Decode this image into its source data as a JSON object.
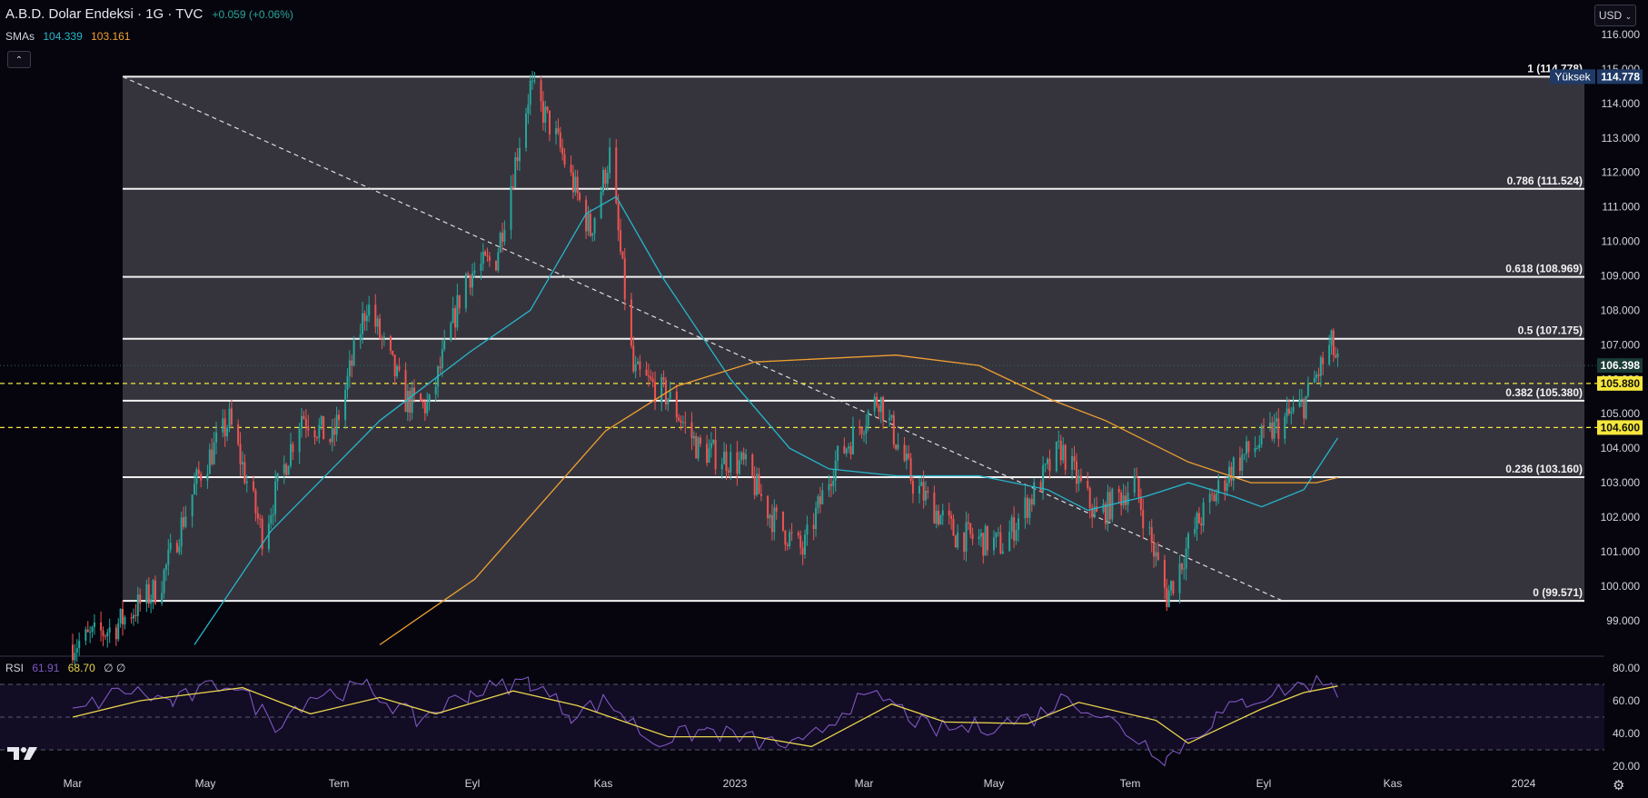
{
  "header": {
    "title": "A.B.D. Dolar Endeksi · 1G · TVC",
    "change": "+0.059 (+0.06%)",
    "sma_label": "SMAs",
    "sma_fast_value": "104.339",
    "sma_slow_value": "103.161",
    "collapse_icon": "chevron-up-icon"
  },
  "currency_button": {
    "label": "USD",
    "icon": "chevron-down-icon"
  },
  "rsi": {
    "label": "RSI",
    "value": "61.91",
    "ma_value": "68.70",
    "extra": "∅ ∅"
  },
  "colors": {
    "background": "#06050e",
    "fib_band": "#35343d",
    "up": "#26a69a",
    "down": "#ef5350",
    "sma_fast": "#26b6c9",
    "sma_slow": "#f0a030",
    "rsi_line": "#7e57c2",
    "rsi_ma": "#e8d44d",
    "dashed_level": "#f5e63c"
  },
  "chart_data": [
    {
      "type": "candlestick",
      "title": "A.B.D. Dolar Endeksi · 1G · TVC",
      "timeframe": "1G",
      "x_tick_labels": [
        "Mar",
        "May",
        "Tem",
        "Eyl",
        "Kas",
        "2023",
        "Mar",
        "May",
        "Tem",
        "Eyl",
        "Kas",
        "2024"
      ],
      "y_tick_labels": [
        "116.000",
        "115.000",
        "114.000",
        "113.000",
        "112.000",
        "111.000",
        "110.000",
        "109.000",
        "108.000",
        "107.000",
        "106.000",
        "105.000",
        "104.000",
        "103.000",
        "102.000",
        "101.000",
        "100.000",
        "99.000"
      ],
      "ylim": [
        98.2,
        116.6
      ],
      "price_path": [
        [
          "2022-03-01",
          98.3
        ],
        [
          "2022-03-20",
          98.8
        ],
        [
          "2022-04-10",
          100.0
        ],
        [
          "2022-04-28",
          103.2
        ],
        [
          "2022-05-12",
          104.8
        ],
        [
          "2022-05-27",
          101.5
        ],
        [
          "2022-06-14",
          105.0
        ],
        [
          "2022-06-28",
          104.2
        ],
        [
          "2022-07-14",
          108.2
        ],
        [
          "2022-08-01",
          105.4
        ],
        [
          "2022-08-12",
          105.2
        ],
        [
          "2022-08-29",
          109.0
        ],
        [
          "2022-09-12",
          109.5
        ],
        [
          "2022-09-28",
          114.5
        ],
        [
          "2022-10-10",
          113.0
        ],
        [
          "2022-10-26",
          110.3
        ],
        [
          "2022-11-04",
          112.5
        ],
        [
          "2022-11-15",
          106.2
        ],
        [
          "2022-12-01",
          105.5
        ],
        [
          "2022-12-15",
          104.0
        ],
        [
          "2023-01-05",
          103.5
        ],
        [
          "2023-01-18",
          102.0
        ],
        [
          "2023-02-01",
          101.0
        ],
        [
          "2023-02-15",
          103.5
        ],
        [
          "2023-03-08",
          105.5
        ],
        [
          "2023-03-24",
          103.0
        ],
        [
          "2023-04-13",
          101.5
        ],
        [
          "2023-05-05",
          101.2
        ],
        [
          "2023-05-31",
          104.0
        ],
        [
          "2023-06-16",
          102.0
        ],
        [
          "2023-07-03",
          103.0
        ],
        [
          "2023-07-18",
          99.7
        ],
        [
          "2023-08-01",
          101.8
        ],
        [
          "2023-08-18",
          103.5
        ],
        [
          "2023-09-05",
          104.5
        ],
        [
          "2023-09-20",
          105.3
        ],
        [
          "2023-10-03",
          107.0
        ],
        [
          "2023-10-06",
          106.4
        ]
      ],
      "series": [
        {
          "name": "SMAs",
          "kind": "sma-fast",
          "last_value": 104.339,
          "points": [
            [
              "2022-04-26",
              98.3
            ],
            [
              "2022-05-31",
              101.6
            ],
            [
              "2022-07-20",
              104.8
            ],
            [
              "2022-08-31",
              106.8
            ],
            [
              "2022-09-28",
              108.0
            ],
            [
              "2022-10-24",
              110.8
            ],
            [
              "2022-11-07",
              111.3
            ],
            [
              "2022-11-28",
              109.0
            ],
            [
              "2022-12-30",
              106.0
            ],
            [
              "2023-01-26",
              104.0
            ],
            [
              "2023-02-13",
              103.4
            ],
            [
              "2023-03-16",
              103.2
            ],
            [
              "2023-04-24",
              103.2
            ],
            [
              "2023-05-25",
              102.8
            ],
            [
              "2023-06-12",
              102.2
            ],
            [
              "2023-07-08",
              102.6
            ],
            [
              "2023-07-28",
              103.0
            ],
            [
              "2023-08-18",
              102.6
            ],
            [
              "2023-08-31",
              102.3
            ],
            [
              "2023-09-20",
              102.8
            ],
            [
              "2023-10-06",
              104.3
            ]
          ]
        },
        {
          "name": "SMAs",
          "kind": "sma-slow",
          "last_value": 103.161,
          "points": [
            [
              "2022-07-20",
              98.3
            ],
            [
              "2022-09-02",
              100.2
            ],
            [
              "2022-11-02",
              104.5
            ],
            [
              "2022-12-05",
              105.8
            ],
            [
              "2023-01-10",
              106.5
            ],
            [
              "2023-03-16",
              106.7
            ],
            [
              "2023-04-24",
              106.4
            ],
            [
              "2023-05-27",
              105.4
            ],
            [
              "2023-06-20",
              104.8
            ],
            [
              "2023-07-28",
              103.6
            ],
            [
              "2023-08-26",
              103.0
            ],
            [
              "2023-09-26",
              103.0
            ],
            [
              "2023-10-06",
              103.15
            ]
          ]
        }
      ],
      "fibonacci": {
        "start_date": "2022-03-24",
        "end_date": "2023-10-06",
        "levels": [
          {
            "ratio": 1,
            "price": 114.778,
            "label": "1 (114.778)"
          },
          {
            "ratio": 0.786,
            "price": 111.524,
            "label": "0.786 (111.524)"
          },
          {
            "ratio": 0.618,
            "price": 108.969,
            "label": "0.618 (108.969)"
          },
          {
            "ratio": 0.5,
            "price": 107.175,
            "label": "0.5 (107.175)"
          },
          {
            "ratio": 0.382,
            "price": 105.38,
            "label": "0.382 (105.380)"
          },
          {
            "ratio": 0.236,
            "price": 103.16,
            "label": "0.236 (103.160)"
          },
          {
            "ratio": 0,
            "price": 99.571,
            "label": "0 (99.571)"
          }
        ],
        "diagonal": [
          [
            "2022-03-24",
            114.778
          ],
          [
            "2023-09-10",
            99.571
          ]
        ]
      },
      "horizontal_levels": [
        {
          "price": 105.88,
          "label": "105.880",
          "style": "dashed"
        },
        {
          "price": 104.6,
          "label": "104.600",
          "style": "dashed"
        }
      ],
      "price_labels": [
        {
          "label": "114.778",
          "caption": "Yüksek",
          "kind": "high"
        },
        {
          "label": "106.398",
          "kind": "last"
        },
        {
          "label": "105.880",
          "kind": "level"
        },
        {
          "label": "104.600",
          "kind": "level"
        }
      ]
    },
    {
      "type": "line",
      "title": "RSI",
      "y_tick_labels": [
        "80.00",
        "60.00",
        "40.00",
        "20.00"
      ],
      "ylim": [
        15,
        87
      ],
      "reference_levels": [
        70,
        50,
        30
      ],
      "series": [
        {
          "name": "RSI",
          "kind": "rsi",
          "last_value": 61.91,
          "points": [
            [
              "2022-03-01",
              52
            ],
            [
              "2022-03-25",
              67
            ],
            [
              "2022-04-16",
              59
            ],
            [
              "2022-05-12",
              72
            ],
            [
              "2022-06-02",
              46
            ],
            [
              "2022-06-18",
              63
            ],
            [
              "2022-07-14",
              68
            ],
            [
              "2022-08-06",
              48
            ],
            [
              "2022-08-31",
              65
            ],
            [
              "2022-09-28",
              72
            ],
            [
              "2022-10-17",
              52
            ],
            [
              "2022-11-03",
              60
            ],
            [
              "2022-11-24",
              35
            ],
            [
              "2022-12-19",
              42
            ],
            [
              "2023-01-12",
              35
            ],
            [
              "2023-02-01",
              32
            ],
            [
              "2023-02-23",
              58
            ],
            [
              "2023-03-10",
              62
            ],
            [
              "2023-04-01",
              42
            ],
            [
              "2023-04-25",
              44
            ],
            [
              "2023-05-19",
              50
            ],
            [
              "2023-06-03",
              63
            ],
            [
              "2023-06-23",
              47
            ],
            [
              "2023-07-18",
              25
            ],
            [
              "2023-08-10",
              50
            ],
            [
              "2023-08-24",
              60
            ],
            [
              "2023-09-14",
              68
            ],
            [
              "2023-10-03",
              73
            ],
            [
              "2023-10-06",
              62
            ]
          ]
        },
        {
          "name": "RSI",
          "kind": "rsi-ma",
          "last_value": 68.7,
          "points": [
            [
              "2022-03-01",
              50
            ],
            [
              "2022-04-01",
              60
            ],
            [
              "2022-05-18",
              68
            ],
            [
              "2022-06-18",
              52
            ],
            [
              "2022-07-20",
              62
            ],
            [
              "2022-08-15",
              52
            ],
            [
              "2022-09-20",
              66
            ],
            [
              "2022-10-20",
              57
            ],
            [
              "2022-12-01",
              38
            ],
            [
              "2023-01-10",
              38
            ],
            [
              "2023-02-05",
              32
            ],
            [
              "2023-03-14",
              58
            ],
            [
              "2023-04-08",
              47
            ],
            [
              "2023-05-16",
              46
            ],
            [
              "2023-06-08",
              59
            ],
            [
              "2023-07-13",
              48
            ],
            [
              "2023-07-28",
              34
            ],
            [
              "2023-08-31",
              55
            ],
            [
              "2023-09-20",
              65
            ],
            [
              "2023-10-06",
              69
            ]
          ]
        }
      ]
    }
  ]
}
